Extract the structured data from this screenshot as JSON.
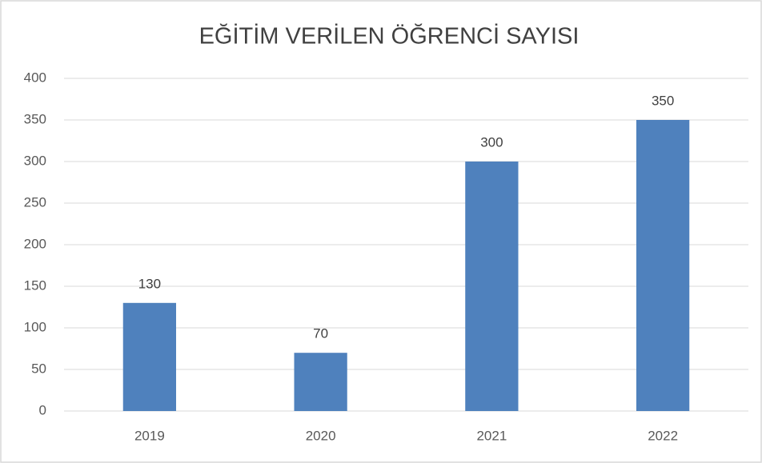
{
  "chart_data": {
    "type": "bar",
    "title": "EĞİTİM VERİLEN ÖĞRENCİ SAYISI",
    "categories": [
      "2019",
      "2020",
      "2021",
      "2022"
    ],
    "values": [
      130,
      70,
      300,
      350
    ],
    "color": "#4f81bd",
    "ylim": [
      0,
      400
    ],
    "yticks": [
      0,
      50,
      100,
      150,
      200,
      250,
      300,
      350,
      400
    ],
    "grid": true
  }
}
